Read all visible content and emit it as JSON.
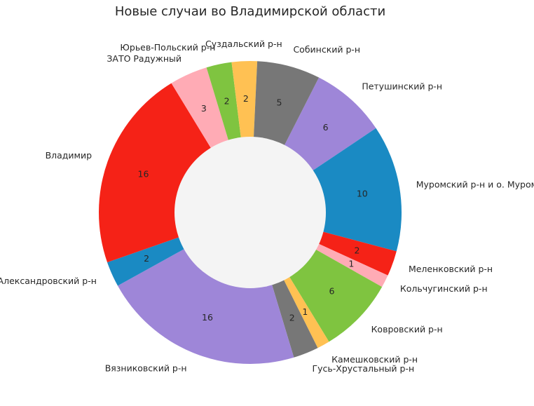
{
  "chart_data": {
    "type": "pie",
    "donut": true,
    "title": "Новые случаи во Владимирской области",
    "center_color": "#f4f4f4",
    "slices": [
      {
        "label": "Петушинский р-н",
        "value": 6,
        "color": "#9e86d8"
      },
      {
        "label": "Муромский р-н и о. Муром",
        "value": 10,
        "color": "#1a8ac3"
      },
      {
        "label": "Меленковский р-н",
        "value": 2,
        "color": "#f52217"
      },
      {
        "label": "Кольчугинский р-н",
        "value": 1,
        "color": "#ffabb5"
      },
      {
        "label": "Ковровский р-н",
        "value": 6,
        "color": "#7fc440"
      },
      {
        "label": "Камешковский р-н",
        "value": 1,
        "color": "#ffc153"
      },
      {
        "label": "Гусь-Хрустальный р-н",
        "value": 2,
        "color": "#777777"
      },
      {
        "label": "Вязниковский р-н",
        "value": 16,
        "color": "#9e86d8"
      },
      {
        "label": "Александровский р-н",
        "value": 2,
        "color": "#1a8ac3"
      },
      {
        "label": "Владимир",
        "value": 16,
        "color": "#f52217"
      },
      {
        "label": "ЗАТО Радужный",
        "value": 3,
        "color": "#ffabb5"
      },
      {
        "label": "Юрьев-Польский р-н",
        "value": 2,
        "color": "#7fc440"
      },
      {
        "label": "Суздальский р-н",
        "value": 2,
        "color": "#ffc153"
      },
      {
        "label": "Собинский р-н",
        "value": 5,
        "color": "#777777"
      }
    ]
  }
}
